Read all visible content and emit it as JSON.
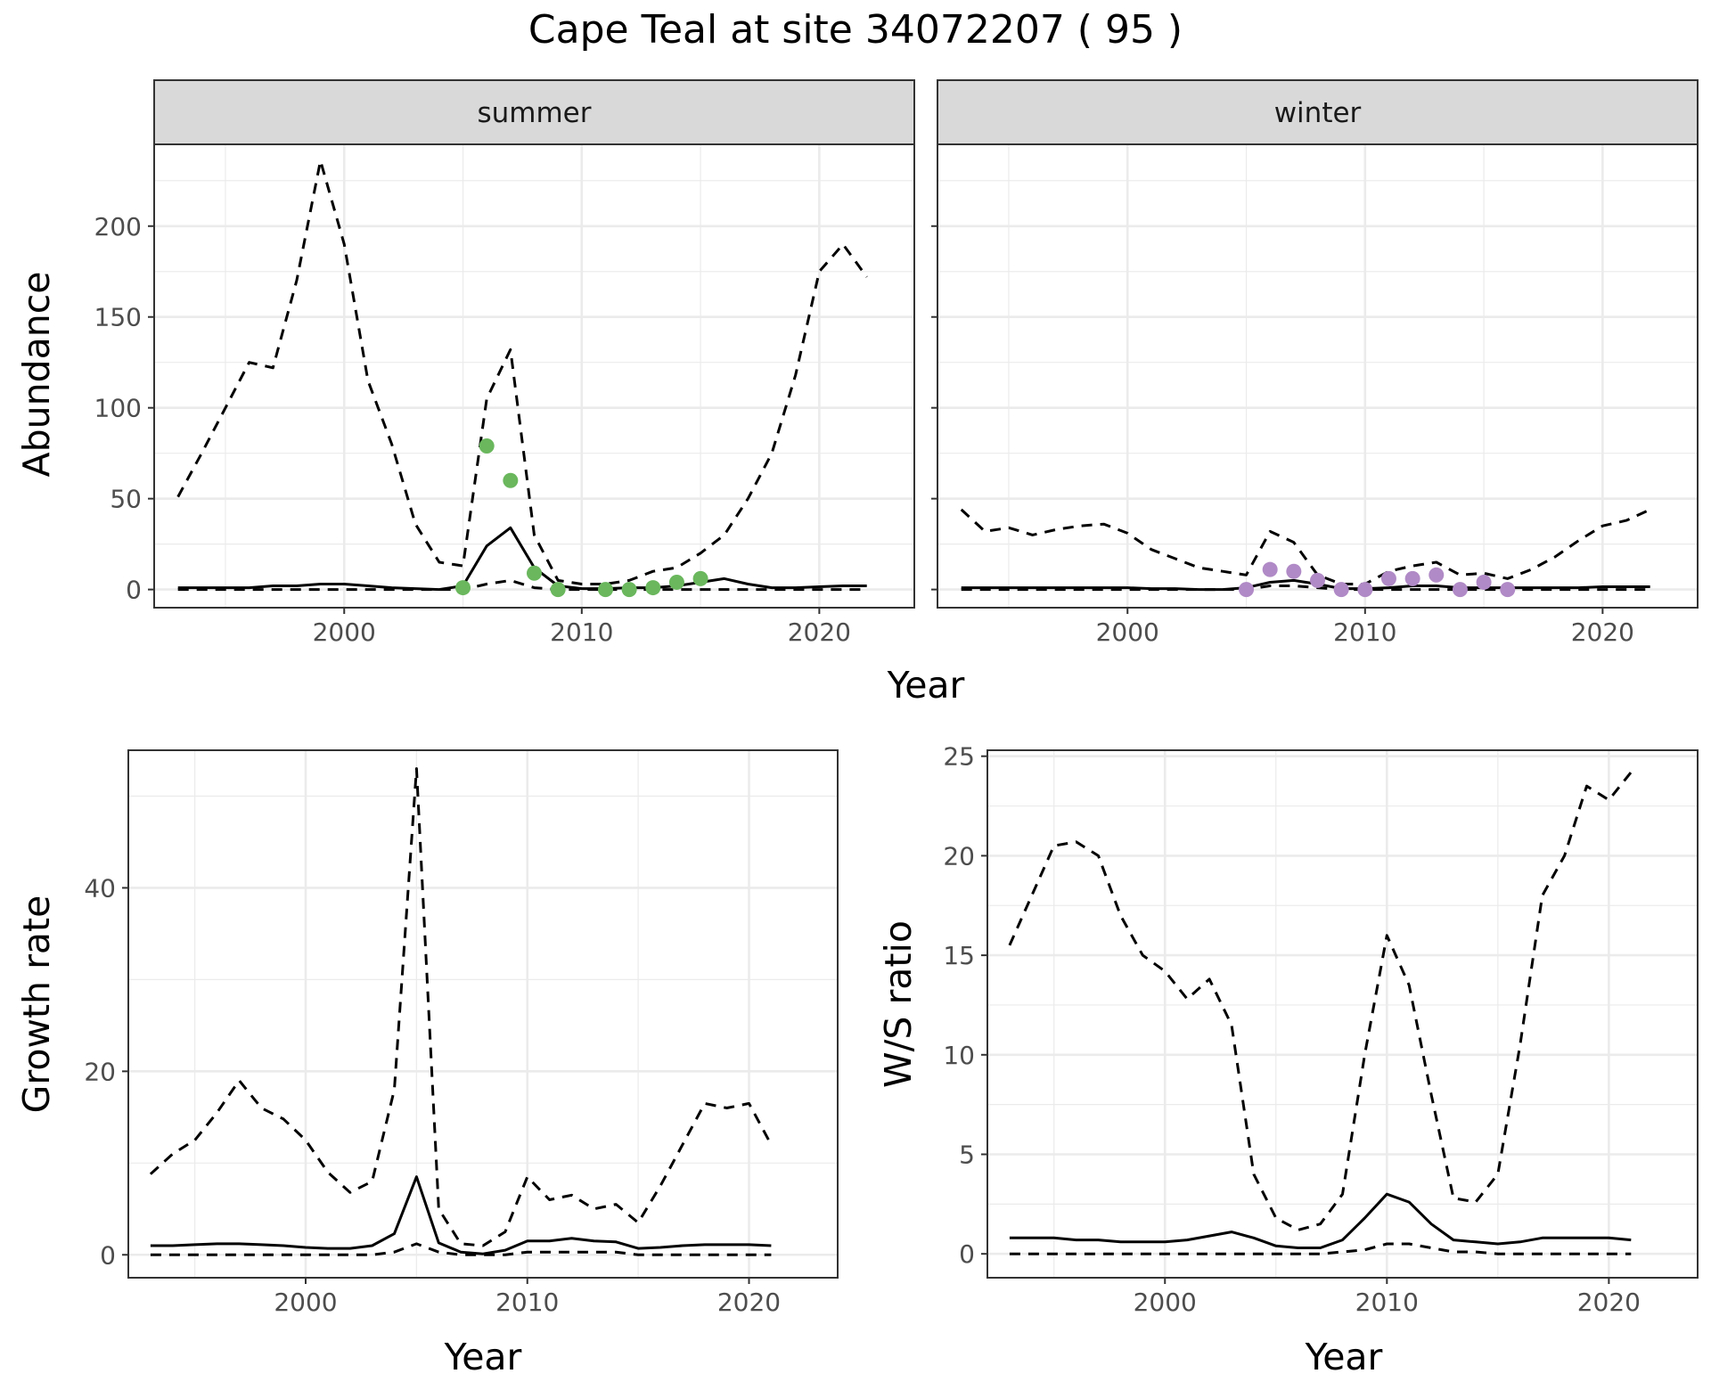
{
  "title": "Cape Teal at site 34072207 ( 95 )",
  "colors": {
    "summer_points": "#6ab75d",
    "winter_points": "#b08ac6",
    "lines": "#000000",
    "strip_fill": "#d9d9d9",
    "grid": "#ebebeb"
  },
  "chart_data": [
    {
      "type": "line",
      "facet": "summer",
      "xlabel": "Year",
      "ylabel": "Abundance",
      "xlim": [
        1992,
        2024
      ],
      "ylim": [
        -10,
        245
      ],
      "xticks": [
        2000,
        2010,
        2020
      ],
      "yticks": [
        0,
        50,
        100,
        150,
        200
      ],
      "grid": true,
      "x": [
        1993,
        1994,
        1995,
        1996,
        1997,
        1998,
        1999,
        2000,
        2001,
        2002,
        2003,
        2004,
        2005,
        2006,
        2007,
        2008,
        2009,
        2010,
        2011,
        2012,
        2013,
        2014,
        2015,
        2016,
        2017,
        2018,
        2019,
        2020,
        2021,
        2022
      ],
      "series": [
        {
          "style": "solid",
          "values": [
            1,
            1,
            1,
            1,
            2,
            2,
            3,
            3,
            2,
            1,
            0.5,
            0,
            2,
            24,
            34,
            12,
            2,
            0.5,
            0.5,
            1,
            1,
            2,
            4,
            6,
            3,
            1,
            1,
            1.5,
            2,
            2
          ]
        },
        {
          "style": "dashed",
          "values": [
            51,
            75,
            100,
            125,
            122,
            170,
            236,
            190,
            115,
            80,
            36,
            15,
            13,
            105,
            132,
            30,
            5,
            3,
            3,
            5,
            10,
            12,
            20,
            30,
            50,
            75,
            118,
            175,
            190,
            172
          ]
        },
        {
          "style": "dashed",
          "values": [
            0,
            0,
            0,
            0,
            0,
            0,
            0,
            0,
            0,
            0,
            0,
            0,
            0,
            3,
            5,
            1,
            0,
            0,
            0,
            0,
            0,
            0,
            0,
            0,
            0,
            0,
            0,
            0,
            0,
            0
          ]
        }
      ],
      "points": {
        "x": [
          2005,
          2006,
          2007,
          2008,
          2009,
          2011,
          2012,
          2013,
          2014,
          2015
        ],
        "y": [
          1,
          79,
          60,
          9,
          0,
          0,
          0,
          1,
          4,
          6
        ]
      }
    },
    {
      "type": "line",
      "facet": "winter",
      "xlabel": "Year",
      "ylabel": "Abundance",
      "xlim": [
        1992,
        2024
      ],
      "ylim": [
        -10,
        245
      ],
      "xticks": [
        2000,
        2010,
        2020
      ],
      "yticks": [
        0,
        50,
        100,
        150,
        200
      ],
      "grid": true,
      "x": [
        1993,
        1994,
        1995,
        1996,
        1997,
        1998,
        1999,
        2000,
        2001,
        2002,
        2003,
        2004,
        2005,
        2006,
        2007,
        2008,
        2009,
        2010,
        2011,
        2012,
        2013,
        2014,
        2015,
        2016,
        2017,
        2018,
        2019,
        2020,
        2021,
        2022
      ],
      "series": [
        {
          "style": "solid",
          "values": [
            1,
            1,
            1,
            1,
            1,
            1,
            1,
            1,
            0.5,
            0.5,
            0,
            0,
            1,
            4,
            5,
            3,
            0.5,
            0.5,
            1,
            2,
            2,
            1,
            1,
            1,
            1,
            1,
            1,
            1.5,
            1.5,
            1.5
          ]
        },
        {
          "style": "dashed",
          "values": [
            44,
            32,
            34,
            30,
            33,
            35,
            36,
            31,
            22,
            17,
            12,
            10,
            8,
            32,
            26,
            8,
            3,
            3,
            10,
            13,
            15,
            8,
            9,
            6,
            11,
            18,
            27,
            35,
            38,
            44
          ]
        },
        {
          "style": "dashed",
          "values": [
            0,
            0,
            0,
            0,
            0,
            0,
            0,
            0,
            0,
            0,
            0,
            0,
            0,
            2,
            2,
            1,
            0,
            0,
            0,
            0,
            0,
            0,
            0,
            0,
            0,
            0,
            0,
            0,
            0,
            0
          ]
        }
      ],
      "points": {
        "x": [
          2005,
          2006,
          2007,
          2008,
          2009,
          2010,
          2011,
          2012,
          2013,
          2014,
          2015,
          2016
        ],
        "y": [
          0,
          11,
          10,
          5,
          0,
          0,
          6,
          6,
          8,
          0,
          4,
          0
        ]
      }
    },
    {
      "type": "line",
      "xlabel": "Year",
      "ylabel": "Growth rate",
      "xlim": [
        1992,
        2024
      ],
      "ylim": [
        -2.5,
        55
      ],
      "xticks": [
        2000,
        2010,
        2020
      ],
      "yticks": [
        0,
        20,
        40
      ],
      "grid": true,
      "x": [
        1993,
        1994,
        1995,
        1996,
        1997,
        1998,
        1999,
        2000,
        2001,
        2002,
        2003,
        2004,
        2005,
        2006,
        2007,
        2008,
        2009,
        2010,
        2011,
        2012,
        2013,
        2014,
        2015,
        2016,
        2017,
        2018,
        2019,
        2020,
        2021
      ],
      "series": [
        {
          "style": "solid",
          "values": [
            1,
            1,
            1.1,
            1.2,
            1.2,
            1.1,
            1,
            0.8,
            0.7,
            0.7,
            1,
            2.3,
            8.5,
            1.3,
            0.3,
            0.1,
            0.5,
            1.5,
            1.5,
            1.8,
            1.5,
            1.4,
            0.7,
            0.8,
            1,
            1.1,
            1.1,
            1.1,
            1
          ]
        },
        {
          "style": "dashed",
          "values": [
            8.8,
            11,
            12.5,
            15.5,
            19,
            16,
            14.8,
            12.5,
            9,
            6.8,
            8,
            18,
            53,
            5,
            1.2,
            1,
            2.5,
            8.5,
            6,
            6.5,
            5,
            5.5,
            3.5,
            7.5,
            12,
            16.5,
            16,
            16.5,
            12
          ]
        },
        {
          "style": "dashed",
          "values": [
            0,
            0,
            0,
            0,
            0,
            0,
            0,
            0,
            0,
            0,
            0,
            0.3,
            1.2,
            0.3,
            0,
            0,
            0,
            0.3,
            0.3,
            0.3,
            0.3,
            0.3,
            0,
            0,
            0,
            0,
            0,
            0,
            0
          ]
        }
      ]
    },
    {
      "type": "line",
      "xlabel": "Year",
      "ylabel": "W/S ratio",
      "xlim": [
        1992,
        2024
      ],
      "ylim": [
        -1.2,
        25.3
      ],
      "xticks": [
        2000,
        2010,
        2020
      ],
      "yticks": [
        0,
        5,
        10,
        15,
        20,
        25
      ],
      "grid": true,
      "x": [
        1993,
        1994,
        1995,
        1996,
        1997,
        1998,
        1999,
        2000,
        2001,
        2002,
        2003,
        2004,
        2005,
        2006,
        2007,
        2008,
        2009,
        2010,
        2011,
        2012,
        2013,
        2014,
        2015,
        2016,
        2017,
        2018,
        2019,
        2020,
        2021
      ],
      "series": [
        {
          "style": "solid",
          "values": [
            0.8,
            0.8,
            0.8,
            0.7,
            0.7,
            0.6,
            0.6,
            0.6,
            0.7,
            0.9,
            1.1,
            0.8,
            0.4,
            0.3,
            0.3,
            0.7,
            1.8,
            3,
            2.6,
            1.5,
            0.7,
            0.6,
            0.5,
            0.6,
            0.8,
            0.8,
            0.8,
            0.8,
            0.7
          ]
        },
        {
          "style": "dashed",
          "values": [
            15.5,
            18,
            20.5,
            20.7,
            20,
            17,
            15,
            14.2,
            12.8,
            13.8,
            11.5,
            4,
            1.8,
            1.2,
            1.5,
            3,
            10,
            16,
            13.5,
            8,
            2.8,
            2.6,
            4,
            10.5,
            18,
            20,
            23.5,
            22.8,
            24.2
          ]
        },
        {
          "style": "dashed",
          "values": [
            0,
            0,
            0,
            0,
            0,
            0,
            0,
            0,
            0,
            0,
            0,
            0,
            0,
            0,
            0,
            0.1,
            0.2,
            0.5,
            0.5,
            0.3,
            0.1,
            0.1,
            0,
            0,
            0,
            0,
            0,
            0,
            0
          ]
        }
      ]
    }
  ]
}
